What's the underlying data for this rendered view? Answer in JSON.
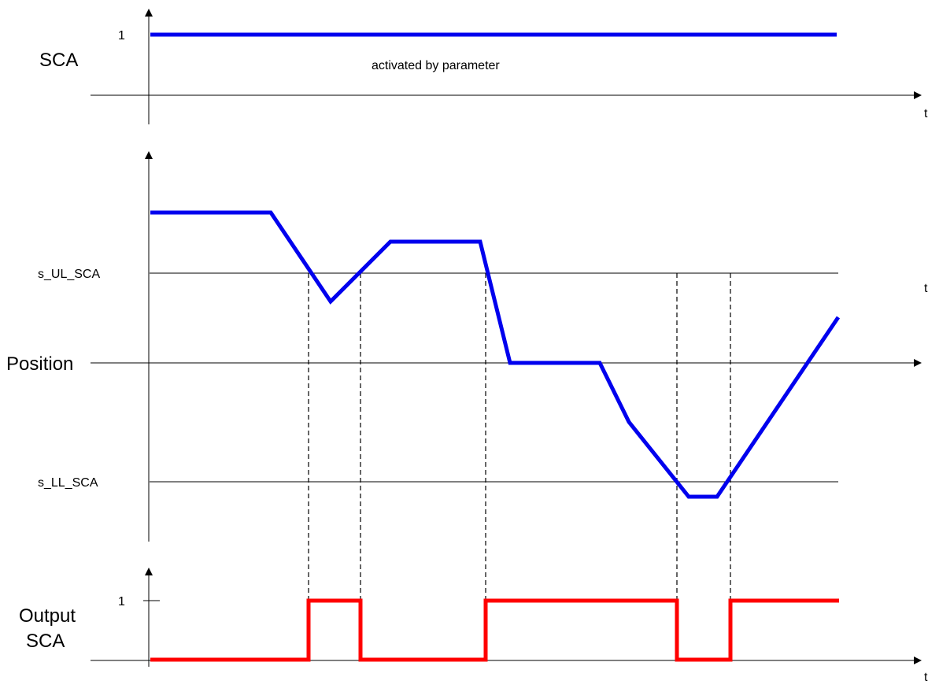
{
  "top_plot": {
    "y_label": "SCA",
    "tick_1": "1",
    "annotation": "activated by parameter",
    "t_label": "t",
    "color": "#0000ee"
  },
  "middle_plot": {
    "y_label": "Position",
    "upper_limit_label": "s_UL_SCA",
    "lower_limit_label": "s_LL_SCA",
    "t_label": "t",
    "color": "#0000ee"
  },
  "bottom_plot": {
    "y_label_line1": "Output",
    "y_label_line2": "SCA",
    "tick_1": "1",
    "t_label": "t",
    "color": "#ff0000"
  }
}
